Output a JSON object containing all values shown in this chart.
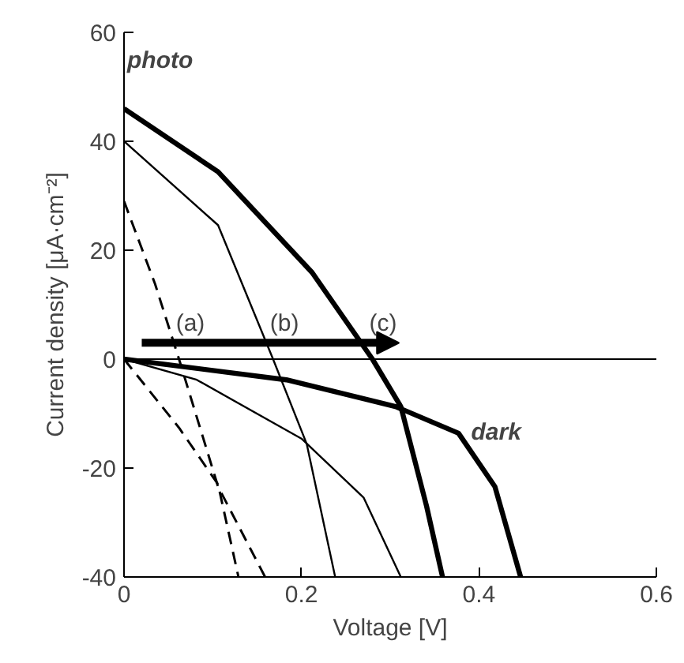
{
  "chart_data": {
    "type": "line",
    "xlabel": "Voltage [V]",
    "ylabel": "Current density [μA·cm⁻²]",
    "xlim": [
      0,
      0.6
    ],
    "ylim": [
      -40,
      60
    ],
    "xticks": [
      0,
      0.2,
      0.4,
      0.6
    ],
    "yticks": [
      -40,
      -20,
      0,
      20,
      40,
      60
    ],
    "grid": false,
    "marker": "none",
    "series": [
      {
        "color": "#000000",
        "line_style": "dashed",
        "x": [
          0,
          0.035,
          0.062,
          0.106,
          0.159
        ],
        "values": [
          29,
          13.8,
          0,
          -23.4,
          -40
        ]
      },
      {
        "color": "#000000",
        "line_style": "dashed",
        "x": [
          0,
          0.062,
          0.106,
          0.129
        ],
        "values": [
          0,
          -12.6,
          -23,
          -40
        ]
      },
      {
        "color": "#000000",
        "line_style": "solid",
        "x": [
          0,
          0.106,
          0.168,
          0.206,
          0.238
        ],
        "values": [
          40,
          24.6,
          0,
          -15.6,
          -40
        ]
      },
      {
        "color": "#000000",
        "line_style": "solid",
        "x": [
          0,
          0.082,
          0.2,
          0.27,
          0.312
        ],
        "values": [
          0,
          -3.8,
          -14.6,
          -25.4,
          -40
        ]
      },
      {
        "color": "#000000",
        "line_style": "solid",
        "x": [
          0,
          0.106,
          0.212,
          0.28,
          0.312,
          0.341,
          0.359
        ],
        "values": [
          46,
          34.4,
          15.9,
          0,
          -8.7,
          -27,
          -40
        ]
      },
      {
        "color": "#000000",
        "line_style": "solid",
        "x": [
          0,
          0.183,
          0.306,
          0.377,
          0.418,
          0.447
        ],
        "values": [
          0,
          -3.8,
          -8.7,
          -13.6,
          -23.4,
          -40
        ]
      }
    ],
    "ref_lines": [
      {
        "axis": "y",
        "value": 0,
        "color": "#000000"
      }
    ],
    "annotations": [
      "photo",
      "dark",
      "(a)",
      "(b)",
      "(c)"
    ]
  }
}
